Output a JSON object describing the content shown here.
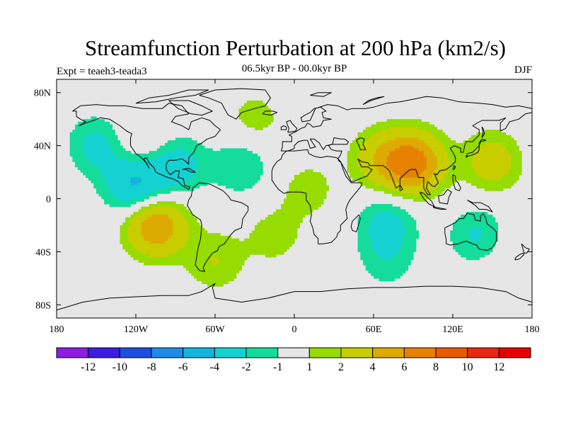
{
  "chart_data": {
    "type": "heatmap",
    "title": "Streamfunction Perturbation at 200 hPa (km2/s)",
    "subtitle": "06.5kyr BP - 00.0kyr BP",
    "left_string": "Expt = teaeh3-teada3",
    "right_string": "DJF",
    "projection": "cylindrical-equidistant",
    "xlim": [
      -180,
      180
    ],
    "ylim": [
      -90,
      90
    ],
    "x_ticks": [
      {
        "value": -180,
        "label": "180"
      },
      {
        "value": -120,
        "label": "120W"
      },
      {
        "value": -60,
        "label": "60W"
      },
      {
        "value": 0,
        "label": "0"
      },
      {
        "value": 60,
        "label": "60E"
      },
      {
        "value": 120,
        "label": "120E"
      },
      {
        "value": 180,
        "label": "180"
      }
    ],
    "y_ticks": [
      {
        "value": 80,
        "label": "80N"
      },
      {
        "value": 40,
        "label": "40N"
      },
      {
        "value": 0,
        "label": "0"
      },
      {
        "value": -40,
        "label": "40S"
      },
      {
        "value": -80,
        "label": "80S"
      }
    ],
    "colorbar": {
      "levels": [
        "-12",
        "-10",
        "-8",
        "-6",
        "-4",
        "-2",
        "-1",
        "1",
        "2",
        "4",
        "6",
        "8",
        "10",
        "12"
      ],
      "colors": [
        "#8b1ee0",
        "#3c1ee0",
        "#1e4ee0",
        "#1e8ce6",
        "#14b4dc",
        "#14d2d2",
        "#14dc9b",
        "#e6e6e6",
        "#96dc00",
        "#c8cd00",
        "#dcaa00",
        "#e68200",
        "#e65a00",
        "#e62814",
        "#e60000"
      ]
    },
    "features": [
      {
        "name": "N Pacific negative",
        "lon": -150,
        "lat": 40,
        "value": -2.5
      },
      {
        "name": "E Pacific subtropical low",
        "lon": -120,
        "lat": 10,
        "value": -4.5
      },
      {
        "name": "Gulf of Mexico negative",
        "lon": -90,
        "lat": 25,
        "value": -3
      },
      {
        "name": "Tropical Atlantic negative",
        "lon": -40,
        "lat": 25,
        "value": -2
      },
      {
        "name": "SE Pacific high",
        "lon": -105,
        "lat": -20,
        "value": 6
      },
      {
        "name": "Tibetan Plateau high",
        "lon": 90,
        "lat": 27,
        "value": 7
      },
      {
        "name": "Central Asia positive",
        "lon": 65,
        "lat": 30,
        "value": 3
      },
      {
        "name": "W Pacific positive",
        "lon": 150,
        "lat": 28,
        "value": 3
      },
      {
        "name": "Greenland positive",
        "lon": -30,
        "lat": 60,
        "value": 1.5
      },
      {
        "name": "Indian Ocean negative",
        "lon": 70,
        "lat": -18,
        "value": -2.5
      },
      {
        "name": "Australia negative",
        "lon": 140,
        "lat": -28,
        "value": -2.5
      },
      {
        "name": "S Indian Ocean negative",
        "lon": 70,
        "lat": -47,
        "value": -1.5
      },
      {
        "name": "S Atlantic positive",
        "lon": -15,
        "lat": -28,
        "value": 1.5
      },
      {
        "name": "S Pacific negative",
        "lon": 170,
        "lat": -50,
        "value": -1.5
      },
      {
        "name": "SW Pacific positive",
        "lon": 160,
        "lat": -40,
        "value": 1.5
      },
      {
        "name": "Argentina positive",
        "lon": -60,
        "lat": -47,
        "value": 2
      },
      {
        "name": "Africa positive",
        "lon": 10,
        "lat": 7,
        "value": 1.5
      },
      {
        "name": "NE Pacific positive",
        "lon": -115,
        "lat": 40,
        "value": 1.5
      }
    ]
  }
}
